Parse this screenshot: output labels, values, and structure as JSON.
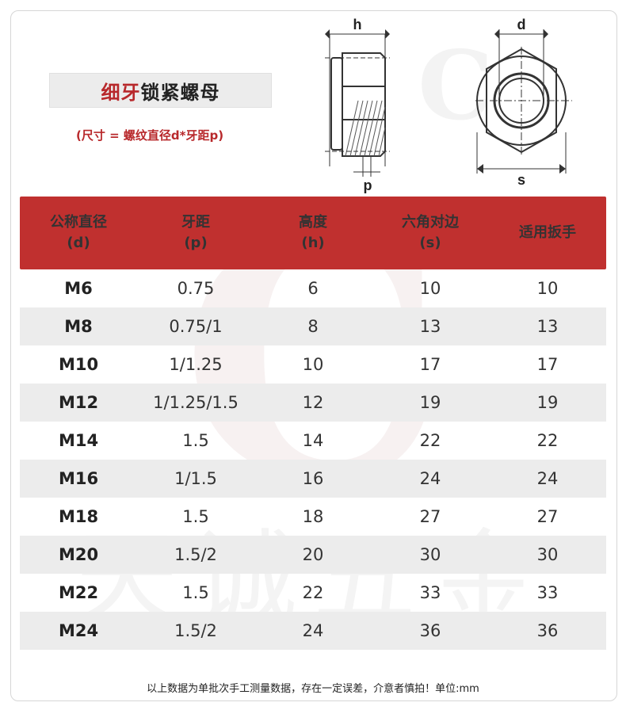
{
  "title": {
    "part_red": "细牙",
    "part_black": "锁紧螺母"
  },
  "formula": "(尺寸 = 螺纹直径d*牙距p)",
  "diagram": {
    "label_h": "h",
    "label_d": "d",
    "label_p": "p",
    "label_s": "s"
  },
  "watermark": {
    "letter": "C",
    "text": "天诚五金"
  },
  "headers": [
    {
      "line1": "公称直径",
      "line2": "(d)"
    },
    {
      "line1": "牙距",
      "line2": "(p)"
    },
    {
      "line1": "高度",
      "line2": "(h)"
    },
    {
      "line1": "六角对边",
      "line2": "(s)"
    },
    {
      "line1": "适用扳手",
      "line2": ""
    }
  ],
  "rows": [
    [
      "M6",
      "0.75",
      "6",
      "10",
      "10"
    ],
    [
      "M8",
      "0.75/1",
      "8",
      "13",
      "13"
    ],
    [
      "M10",
      "1/1.25",
      "10",
      "17",
      "17"
    ],
    [
      "M12",
      "1/1.25/1.5",
      "12",
      "19",
      "19"
    ],
    [
      "M14",
      "1.5",
      "14",
      "22",
      "22"
    ],
    [
      "M16",
      "1/1.5",
      "16",
      "24",
      "24"
    ],
    [
      "M18",
      "1.5",
      "18",
      "27",
      "27"
    ],
    [
      "M20",
      "1.5/2",
      "20",
      "30",
      "30"
    ],
    [
      "M22",
      "1.5",
      "22",
      "33",
      "33"
    ],
    [
      "M24",
      "1.5/2",
      "24",
      "36",
      "36"
    ]
  ],
  "note": "以上数据为单批次手工测量数据，存在一定误差，介意者慎拍！单位:mm",
  "colors": {
    "accent": "#c0302f",
    "stripe": "#ececec"
  }
}
